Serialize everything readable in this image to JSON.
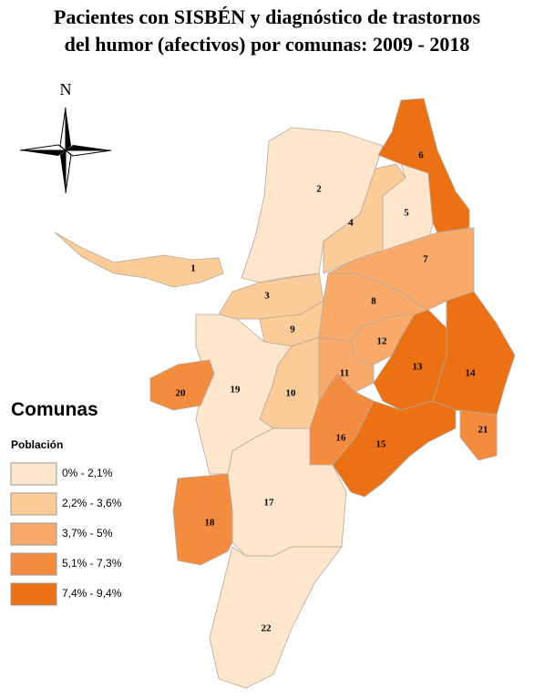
{
  "header": {
    "title": [
      "Pacientes con SISBÉN y diagnóstico de trastornos",
      "del humor (afectivos) por comunas: 2009 - 2018"
    ],
    "north": "N"
  },
  "legend": {
    "title": "Comunas",
    "subtitle": "Población",
    "classes": [
      {
        "label": "0% - 2,1%",
        "color": "#fde6cc"
      },
      {
        "label": "2,2% - 3,6%",
        "color": "#fbcb98"
      },
      {
        "label": "3,7% - 5%",
        "color": "#f9aa6a"
      },
      {
        "label": "5,1% - 7,3%",
        "color": "#f48c40"
      },
      {
        "label": "7,4% - 9,4%",
        "color": "#ec7014"
      }
    ]
  },
  "communes": [
    {
      "label": "1",
      "color": "#fbcb98"
    },
    {
      "label": "2",
      "color": "#fde6cc"
    },
    {
      "label": "3",
      "color": "#fbcb98"
    },
    {
      "label": "4",
      "color": "#fbcb98"
    },
    {
      "label": "5",
      "color": "#fde6cc"
    },
    {
      "label": "6",
      "color": "#ec7014"
    },
    {
      "label": "7",
      "color": "#f9aa6a"
    },
    {
      "label": "8",
      "color": "#f9aa6a"
    },
    {
      "label": "9",
      "color": "#fbcb98"
    },
    {
      "label": "10",
      "color": "#fbcb98"
    },
    {
      "label": "11",
      "color": "#f9aa6a"
    },
    {
      "label": "12",
      "color": "#f9aa6a"
    },
    {
      "label": "13",
      "color": "#ec7014"
    },
    {
      "label": "14",
      "color": "#ec7014"
    },
    {
      "label": "15",
      "color": "#ec7014"
    },
    {
      "label": "16",
      "color": "#f48c40"
    },
    {
      "label": "17",
      "color": "#fde6cc"
    },
    {
      "label": "18",
      "color": "#f48c40"
    },
    {
      "label": "19",
      "color": "#fde6cc"
    },
    {
      "label": "20",
      "color": "#f48c40"
    },
    {
      "label": "21",
      "color": "#f48c40"
    },
    {
      "label": "22",
      "color": "#fde6cc"
    }
  ]
}
